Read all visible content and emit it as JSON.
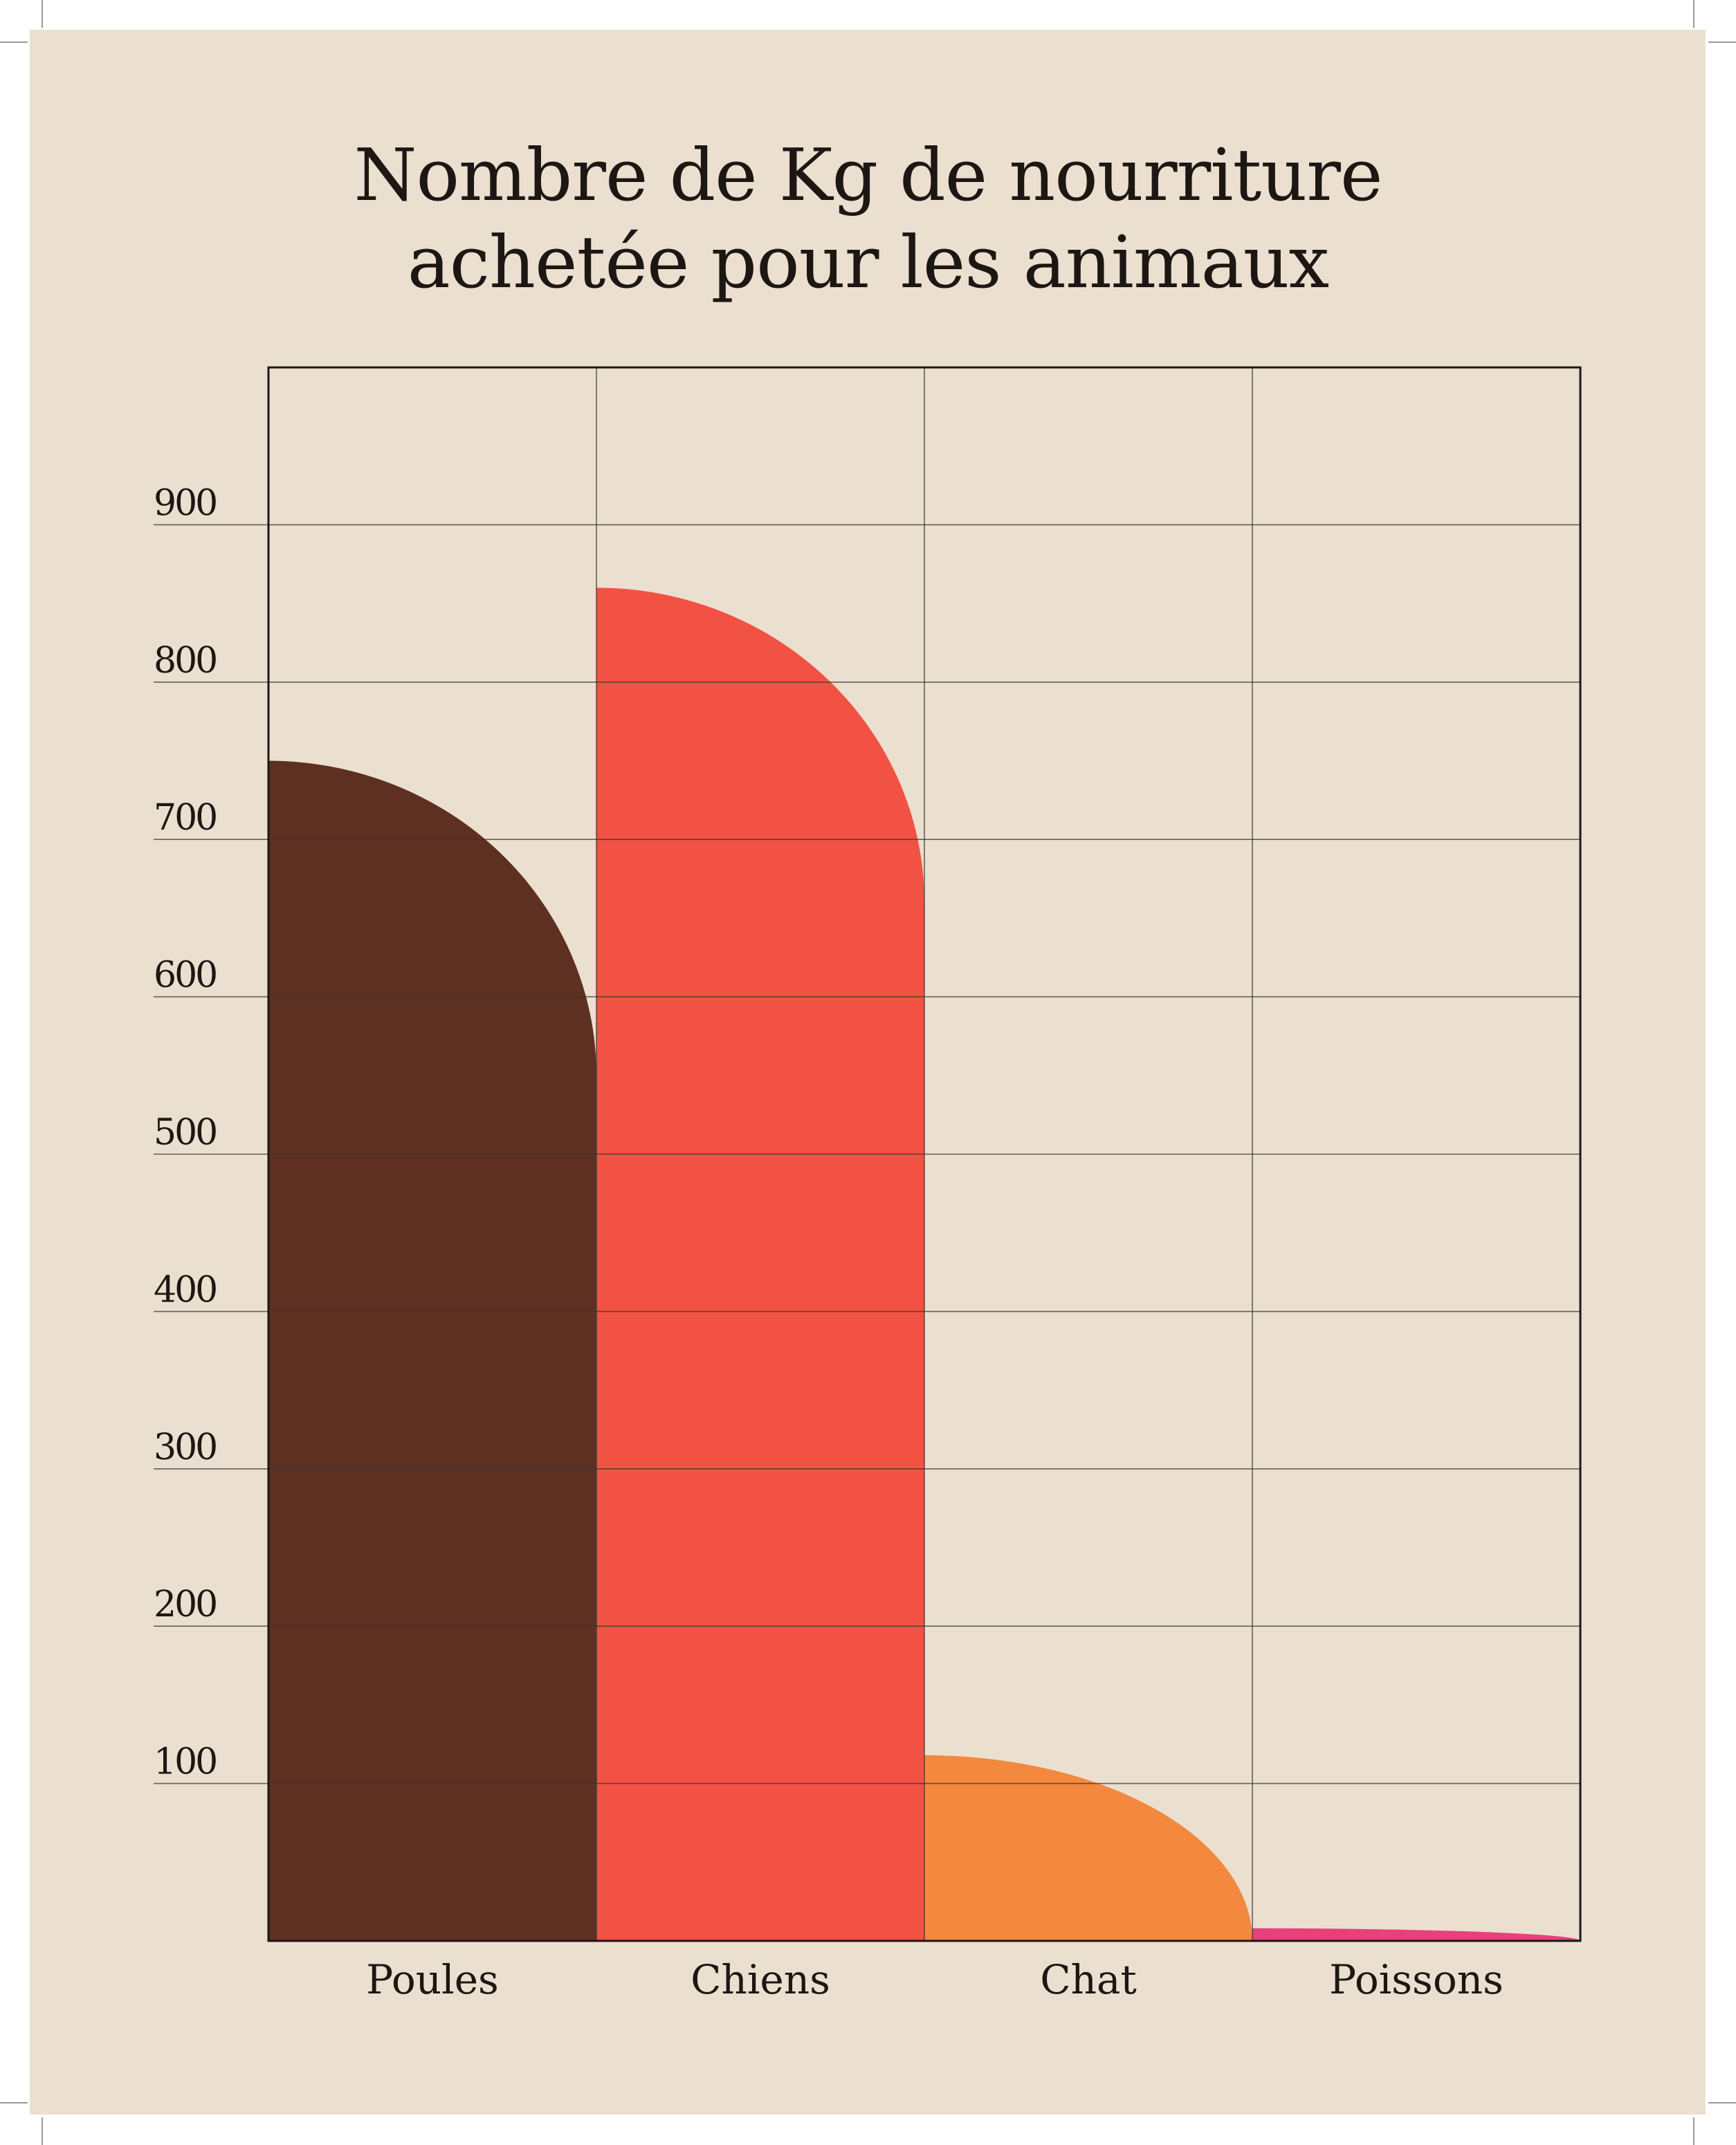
{
  "colors": {
    "background": "#ebe0cf",
    "grid": "#3a3330",
    "frame": "#1d1714",
    "text": "#1d1714"
  },
  "chart_data": {
    "type": "bar",
    "title_lines": [
      "Nombre de Kg de nourriture",
      "achetée pour les animaux"
    ],
    "categories": [
      "Poules",
      "Chiens",
      "Chat",
      "Poissons"
    ],
    "series": [
      {
        "values": [
          750,
          860,
          118,
          8
        ],
        "colors": [
          "#5e3022",
          "#f25244",
          "#f2893f",
          "#e8407a"
        ]
      }
    ],
    "yticks": [
      100,
      200,
      300,
      400,
      500,
      600,
      700,
      800,
      900
    ],
    "ylim": [
      0,
      1000
    ],
    "grid": true,
    "bar_shape": "rounded quarter-circle top-right"
  }
}
